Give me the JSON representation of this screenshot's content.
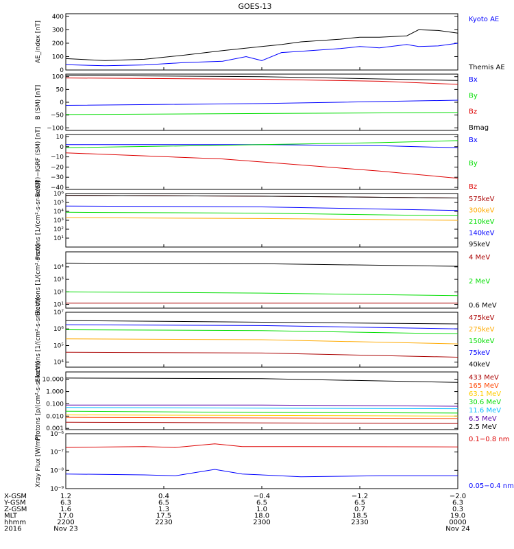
{
  "title": "GOES-13",
  "chart_data": [
    {
      "panel": "ae",
      "type": "line",
      "ylabel": "AE_index [nT]",
      "yscale": "linear",
      "ylim": [
        0,
        420
      ],
      "yticks": [
        {
          "v": 0,
          "t": "0"
        },
        {
          "v": 100,
          "t": "100"
        },
        {
          "v": 200,
          "t": "200"
        },
        {
          "v": 300,
          "t": "300"
        },
        {
          "v": 400,
          "t": "400"
        }
      ],
      "series": [
        {
          "name": "Kyoto AE",
          "color": "#0000ff",
          "points": [
            [
              0,
              40
            ],
            [
              0.1,
              32
            ],
            [
              0.2,
              38
            ],
            [
              0.3,
              55
            ],
            [
              0.4,
              65
            ],
            [
              0.46,
              100
            ],
            [
              0.5,
              70
            ],
            [
              0.55,
              130
            ],
            [
              0.6,
              140
            ],
            [
              0.7,
              160
            ],
            [
              0.75,
              175
            ],
            [
              0.8,
              165
            ],
            [
              0.87,
              190
            ],
            [
              0.9,
              175
            ],
            [
              0.95,
              180
            ],
            [
              1,
              200
            ]
          ]
        },
        {
          "name": "Themis AE",
          "color": "#000000",
          "points": [
            [
              0,
              85
            ],
            [
              0.1,
              70
            ],
            [
              0.2,
              80
            ],
            [
              0.3,
              110
            ],
            [
              0.4,
              145
            ],
            [
              0.5,
              175
            ],
            [
              0.55,
              190
            ],
            [
              0.6,
              210
            ],
            [
              0.7,
              230
            ],
            [
              0.75,
              245
            ],
            [
              0.8,
              245
            ],
            [
              0.87,
              255
            ],
            [
              0.9,
              300
            ],
            [
              0.95,
              295
            ],
            [
              1,
              275
            ]
          ]
        }
      ]
    },
    {
      "panel": "b_sm",
      "type": "line",
      "ylabel": "B (SM) [nT]",
      "yscale": "linear",
      "ylim": [
        -110,
        110
      ],
      "yticks": [
        {
          "v": -100,
          "t": "−100"
        },
        {
          "v": -50,
          "t": "−50"
        },
        {
          "v": 0,
          "t": "0"
        },
        {
          "v": 50,
          "t": "50"
        },
        {
          "v": 100,
          "t": "100"
        }
      ],
      "series": [
        {
          "name": "Bx",
          "color": "#0000ff",
          "points": [
            [
              0,
              -12
            ],
            [
              0.5,
              -5
            ],
            [
              1,
              8
            ]
          ]
        },
        {
          "name": "By",
          "color": "#00dd00",
          "points": [
            [
              0,
              -48
            ],
            [
              0.5,
              -44
            ],
            [
              1,
              -40
            ]
          ]
        },
        {
          "name": "Bz",
          "color": "#dd0000",
          "points": [
            [
              0,
              95
            ],
            [
              0.5,
              90
            ],
            [
              0.8,
              82
            ],
            [
              1,
              70
            ]
          ]
        },
        {
          "name": "Bmag",
          "color": "#000000",
          "points": [
            [
              0,
              105
            ],
            [
              0.5,
              100
            ],
            [
              1,
              85
            ]
          ]
        }
      ]
    },
    {
      "panel": "b_igrf",
      "type": "line",
      "ylabel": "B (SM)−IGRF (SM) [nT]",
      "yscale": "linear",
      "ylim": [
        -42,
        12
      ],
      "yticks": [
        {
          "v": -40,
          "t": "−40"
        },
        {
          "v": -30,
          "t": "−30"
        },
        {
          "v": -20,
          "t": "−20"
        },
        {
          "v": -10,
          "t": "−10"
        },
        {
          "v": 0,
          "t": "0"
        },
        {
          "v": 10,
          "t": "10"
        }
      ],
      "series": [
        {
          "name": "Bx",
          "color": "#0000ff",
          "points": [
            [
              0,
              2
            ],
            [
              0.5,
              2
            ],
            [
              0.8,
              1
            ],
            [
              1,
              -1
            ]
          ]
        },
        {
          "name": "By",
          "color": "#00dd00",
          "points": [
            [
              0,
              -1
            ],
            [
              0.5,
              2
            ],
            [
              0.8,
              4
            ],
            [
              1,
              6
            ]
          ]
        },
        {
          "name": "Bz",
          "color": "#dd0000",
          "points": [
            [
              0,
              -6
            ],
            [
              0.4,
              -12
            ],
            [
              0.6,
              -18
            ],
            [
              0.8,
              -24
            ],
            [
              1,
              -31
            ]
          ]
        }
      ]
    },
    {
      "panel": "protons_maged",
      "type": "line",
      "ylabel": "Protons [1/(cm²-s-sr-keV)]",
      "yscale": "log",
      "ylim": [
        0,
        6
      ],
      "yticks": [
        {
          "v": 1,
          "t": "10¹"
        },
        {
          "v": 2,
          "t": "10²"
        },
        {
          "v": 3,
          "t": "10³"
        },
        {
          "v": 4,
          "t": "10⁴"
        },
        {
          "v": 5,
          "t": "10⁵"
        },
        {
          "v": 6,
          "t": "10⁶"
        }
      ],
      "series": [
        {
          "name": "575keV",
          "color": "#aa0000",
          "points": [
            [
              0,
              5.8
            ],
            [
              0.5,
              5.7
            ],
            [
              1,
              5.5
            ]
          ]
        },
        {
          "name": "300keV",
          "color": "#ffaa00",
          "points": [
            [
              0,
              3.3
            ],
            [
              0.5,
              3.2
            ],
            [
              1,
              3.0
            ]
          ]
        },
        {
          "name": "210keV",
          "color": "#00dd00",
          "points": [
            [
              0,
              3.9
            ],
            [
              0.5,
              3.8
            ],
            [
              1,
              3.5
            ]
          ]
        },
        {
          "name": "140keV",
          "color": "#0000ff",
          "points": [
            [
              0,
              4.6
            ],
            [
              0.5,
              4.5
            ],
            [
              1,
              4.1
            ]
          ]
        },
        {
          "name": "95keV",
          "color": "#000000",
          "points": [
            [
              0,
              5.8
            ],
            [
              0.5,
              5.7
            ],
            [
              1,
              5.5
            ]
          ]
        }
      ]
    },
    {
      "panel": "electrons_epead",
      "type": "line",
      "ylabel": "Electrons [1/(cm²-s-sr)]",
      "yscale": "log",
      "ylim": [
        0.7,
        5.2
      ],
      "yticks": [
        {
          "v": 1,
          "t": "10¹"
        },
        {
          "v": 2,
          "t": "10²"
        },
        {
          "v": 3,
          "t": "10³"
        },
        {
          "v": 4,
          "t": "10⁴"
        }
      ],
      "series": [
        {
          "name": "4 MeV",
          "color": "#aa0000",
          "points": [
            [
              0,
              1.1
            ],
            [
              0.5,
              1.1
            ],
            [
              1,
              1.1
            ]
          ]
        },
        {
          "name": "2 MeV",
          "color": "#00dd00",
          "points": [
            [
              0,
              2.0
            ],
            [
              0.5,
              1.9
            ],
            [
              1,
              1.7
            ]
          ]
        },
        {
          "name": "0.6 MeV",
          "color": "#000000",
          "points": [
            [
              0,
              4.3
            ],
            [
              0.5,
              4.25
            ],
            [
              1,
              4.05
            ]
          ]
        }
      ]
    },
    {
      "panel": "electrons_maged",
      "type": "line",
      "ylabel": "Electrons [1/(cm²-s-sr-keV)]",
      "yscale": "log",
      "ylim": [
        3.7,
        7
      ],
      "yticks": [
        {
          "v": 4,
          "t": "10⁴"
        },
        {
          "v": 5,
          "t": "10⁵"
        },
        {
          "v": 6,
          "t": "10⁶"
        },
        {
          "v": 7,
          "t": "10⁷"
        }
      ],
      "series": [
        {
          "name": "475keV",
          "color": "#aa0000",
          "points": [
            [
              0,
              4.6
            ],
            [
              0.5,
              4.55
            ],
            [
              1,
              4.3
            ]
          ]
        },
        {
          "name": "275keV",
          "color": "#ffaa00",
          "points": [
            [
              0,
              5.4
            ],
            [
              0.5,
              5.35
            ],
            [
              1,
              5.1
            ]
          ]
        },
        {
          "name": "150keV",
          "color": "#00dd00",
          "points": [
            [
              0,
              5.95
            ],
            [
              0.5,
              5.9
            ],
            [
              1,
              5.7
            ]
          ]
        },
        {
          "name": "75keV",
          "color": "#0000ff",
          "points": [
            [
              0,
              6.25
            ],
            [
              0.5,
              6.2
            ],
            [
              1,
              6.0
            ]
          ]
        },
        {
          "name": "40keV",
          "color": "#000000",
          "points": [
            [
              0,
              6.5
            ],
            [
              0.5,
              6.4
            ],
            [
              1,
              6.3
            ]
          ]
        }
      ]
    },
    {
      "panel": "protons_epead",
      "type": "line",
      "ylabel": "Protons [p/(cm²-s-sr-keV)]",
      "yscale": "log",
      "ylim": [
        -3.1,
        1.6
      ],
      "yticks": [
        {
          "v": -3,
          "t": "0.001"
        },
        {
          "v": -2,
          "t": "0.010"
        },
        {
          "v": -1,
          "t": "0.100"
        },
        {
          "v": 0,
          "t": "1.000"
        },
        {
          "v": 1,
          "t": "10.000"
        }
      ],
      "series": [
        {
          "name": "433 MeV",
          "color": "#aa0000",
          "points": [
            [
              0,
              -2.5
            ],
            [
              0.5,
              -2.55
            ],
            [
              1,
              -2.6
            ]
          ]
        },
        {
          "name": "165 MeV",
          "color": "#ff4400",
          "points": [
            [
              0,
              -2.1
            ],
            [
              0.5,
              -2.15
            ],
            [
              1,
              -2.2
            ]
          ]
        },
        {
          "name": "63.1 MeV",
          "color": "#ffcc00",
          "points": [
            [
              0,
              -1.9
            ],
            [
              0.5,
              -1.95
            ],
            [
              1,
              -2.0
            ]
          ]
        },
        {
          "name": "30.6 MeV",
          "color": "#00dd00",
          "points": [
            [
              0,
              -1.6
            ],
            [
              0.5,
              -1.7
            ],
            [
              1,
              -1.75
            ]
          ]
        },
        {
          "name": "11.6 MeV",
          "color": "#00bbff",
          "points": [
            [
              0,
              -1.3
            ],
            [
              0.5,
              -1.35
            ],
            [
              1,
              -1.4
            ]
          ]
        },
        {
          "name": "6.5 MeV",
          "color": "#5500aa",
          "points": [
            [
              0,
              -1.1
            ],
            [
              0.5,
              -1.1
            ],
            [
              1,
              -1.2
            ]
          ]
        },
        {
          "name": "2.5 MeV",
          "color": "#000000",
          "points": [
            [
              0,
              1.1
            ],
            [
              0.5,
              1.05
            ],
            [
              1,
              0.75
            ]
          ]
        }
      ]
    },
    {
      "panel": "xray",
      "type": "line",
      "ylabel": "Xray Flux [W/m²]",
      "yscale": "log",
      "ylim": [
        -9,
        -6
      ],
      "yticks": [
        {
          "v": -9,
          "t": "10⁻⁹"
        },
        {
          "v": -8,
          "t": "10⁻⁸"
        },
        {
          "v": -7,
          "t": "10⁻⁷"
        },
        {
          "v": -6,
          "t": "10⁻⁶"
        }
      ],
      "series": [
        {
          "name": "0.1−0.8 nm",
          "color": "#dd0000",
          "points": [
            [
              0,
              -6.75
            ],
            [
              0.2,
              -6.7
            ],
            [
              0.28,
              -6.75
            ],
            [
              0.38,
              -6.55
            ],
            [
              0.45,
              -6.7
            ],
            [
              0.6,
              -6.7
            ],
            [
              1,
              -6.72
            ]
          ]
        },
        {
          "name": "0.05−0.4 nm",
          "color": "#0000ff",
          "points": [
            [
              0,
              -8.2
            ],
            [
              0.2,
              -8.25
            ],
            [
              0.28,
              -8.3
            ],
            [
              0.38,
              -7.95
            ],
            [
              0.45,
              -8.2
            ],
            [
              0.6,
              -8.35
            ],
            [
              0.8,
              -8.3
            ],
            [
              1,
              -8.3
            ]
          ]
        }
      ]
    }
  ],
  "ephemeris": {
    "labels": [
      "X-GSM",
      "Y-GSM",
      "Z-GSM",
      "MLT",
      "hhmm",
      "2016"
    ],
    "columns": [
      [
        "1.2",
        "6.3",
        "1.6",
        "17.0",
        "2200",
        "Nov 23"
      ],
      [
        "0.4",
        "6.5",
        "1.3",
        "17.5",
        "2230",
        ""
      ],
      [
        "−0.4",
        "6.5",
        "1.0",
        "18.0",
        "2300",
        ""
      ],
      [
        "−1.2",
        "6.5",
        "0.7",
        "18.5",
        "2330",
        ""
      ],
      [
        "−2.0",
        "6.3",
        "0.3",
        "19.0",
        "0000",
        "Nov 24"
      ]
    ]
  }
}
